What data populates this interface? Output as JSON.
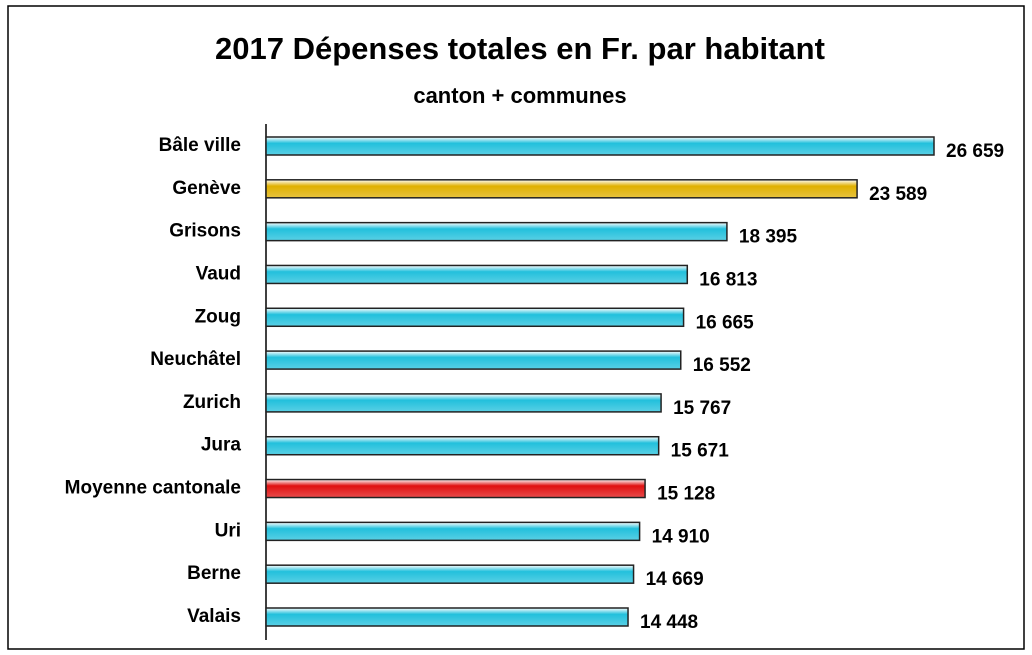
{
  "chart_data": {
    "type": "bar",
    "orientation": "horizontal",
    "title": "2017 Dépenses totales en Fr. par habitant",
    "subtitle": "canton + communes",
    "categories": [
      "Bâle ville",
      "Genève",
      "Grisons",
      "Vaud",
      "Zoug",
      "Neuchâtel",
      "Zurich",
      "Jura",
      "Moyenne cantonale",
      "Uri",
      "Berne",
      "Valais"
    ],
    "values": [
      26659,
      23589,
      18395,
      16813,
      16665,
      16552,
      15767,
      15671,
      15128,
      14910,
      14669,
      14448
    ],
    "value_labels": [
      "26 659",
      "23 589",
      "18 395",
      "16 813",
      "16 665",
      "16 552",
      "15 767",
      "15 671",
      "15 128",
      "14 910",
      "14 669",
      "14 448"
    ],
    "colors": [
      "#22c0dc",
      "#e0b000",
      "#22c0dc",
      "#22c0dc",
      "#22c0dc",
      "#22c0dc",
      "#22c0dc",
      "#22c0dc",
      "#e01010",
      "#22c0dc",
      "#22c0dc",
      "#22c0dc"
    ]
  }
}
